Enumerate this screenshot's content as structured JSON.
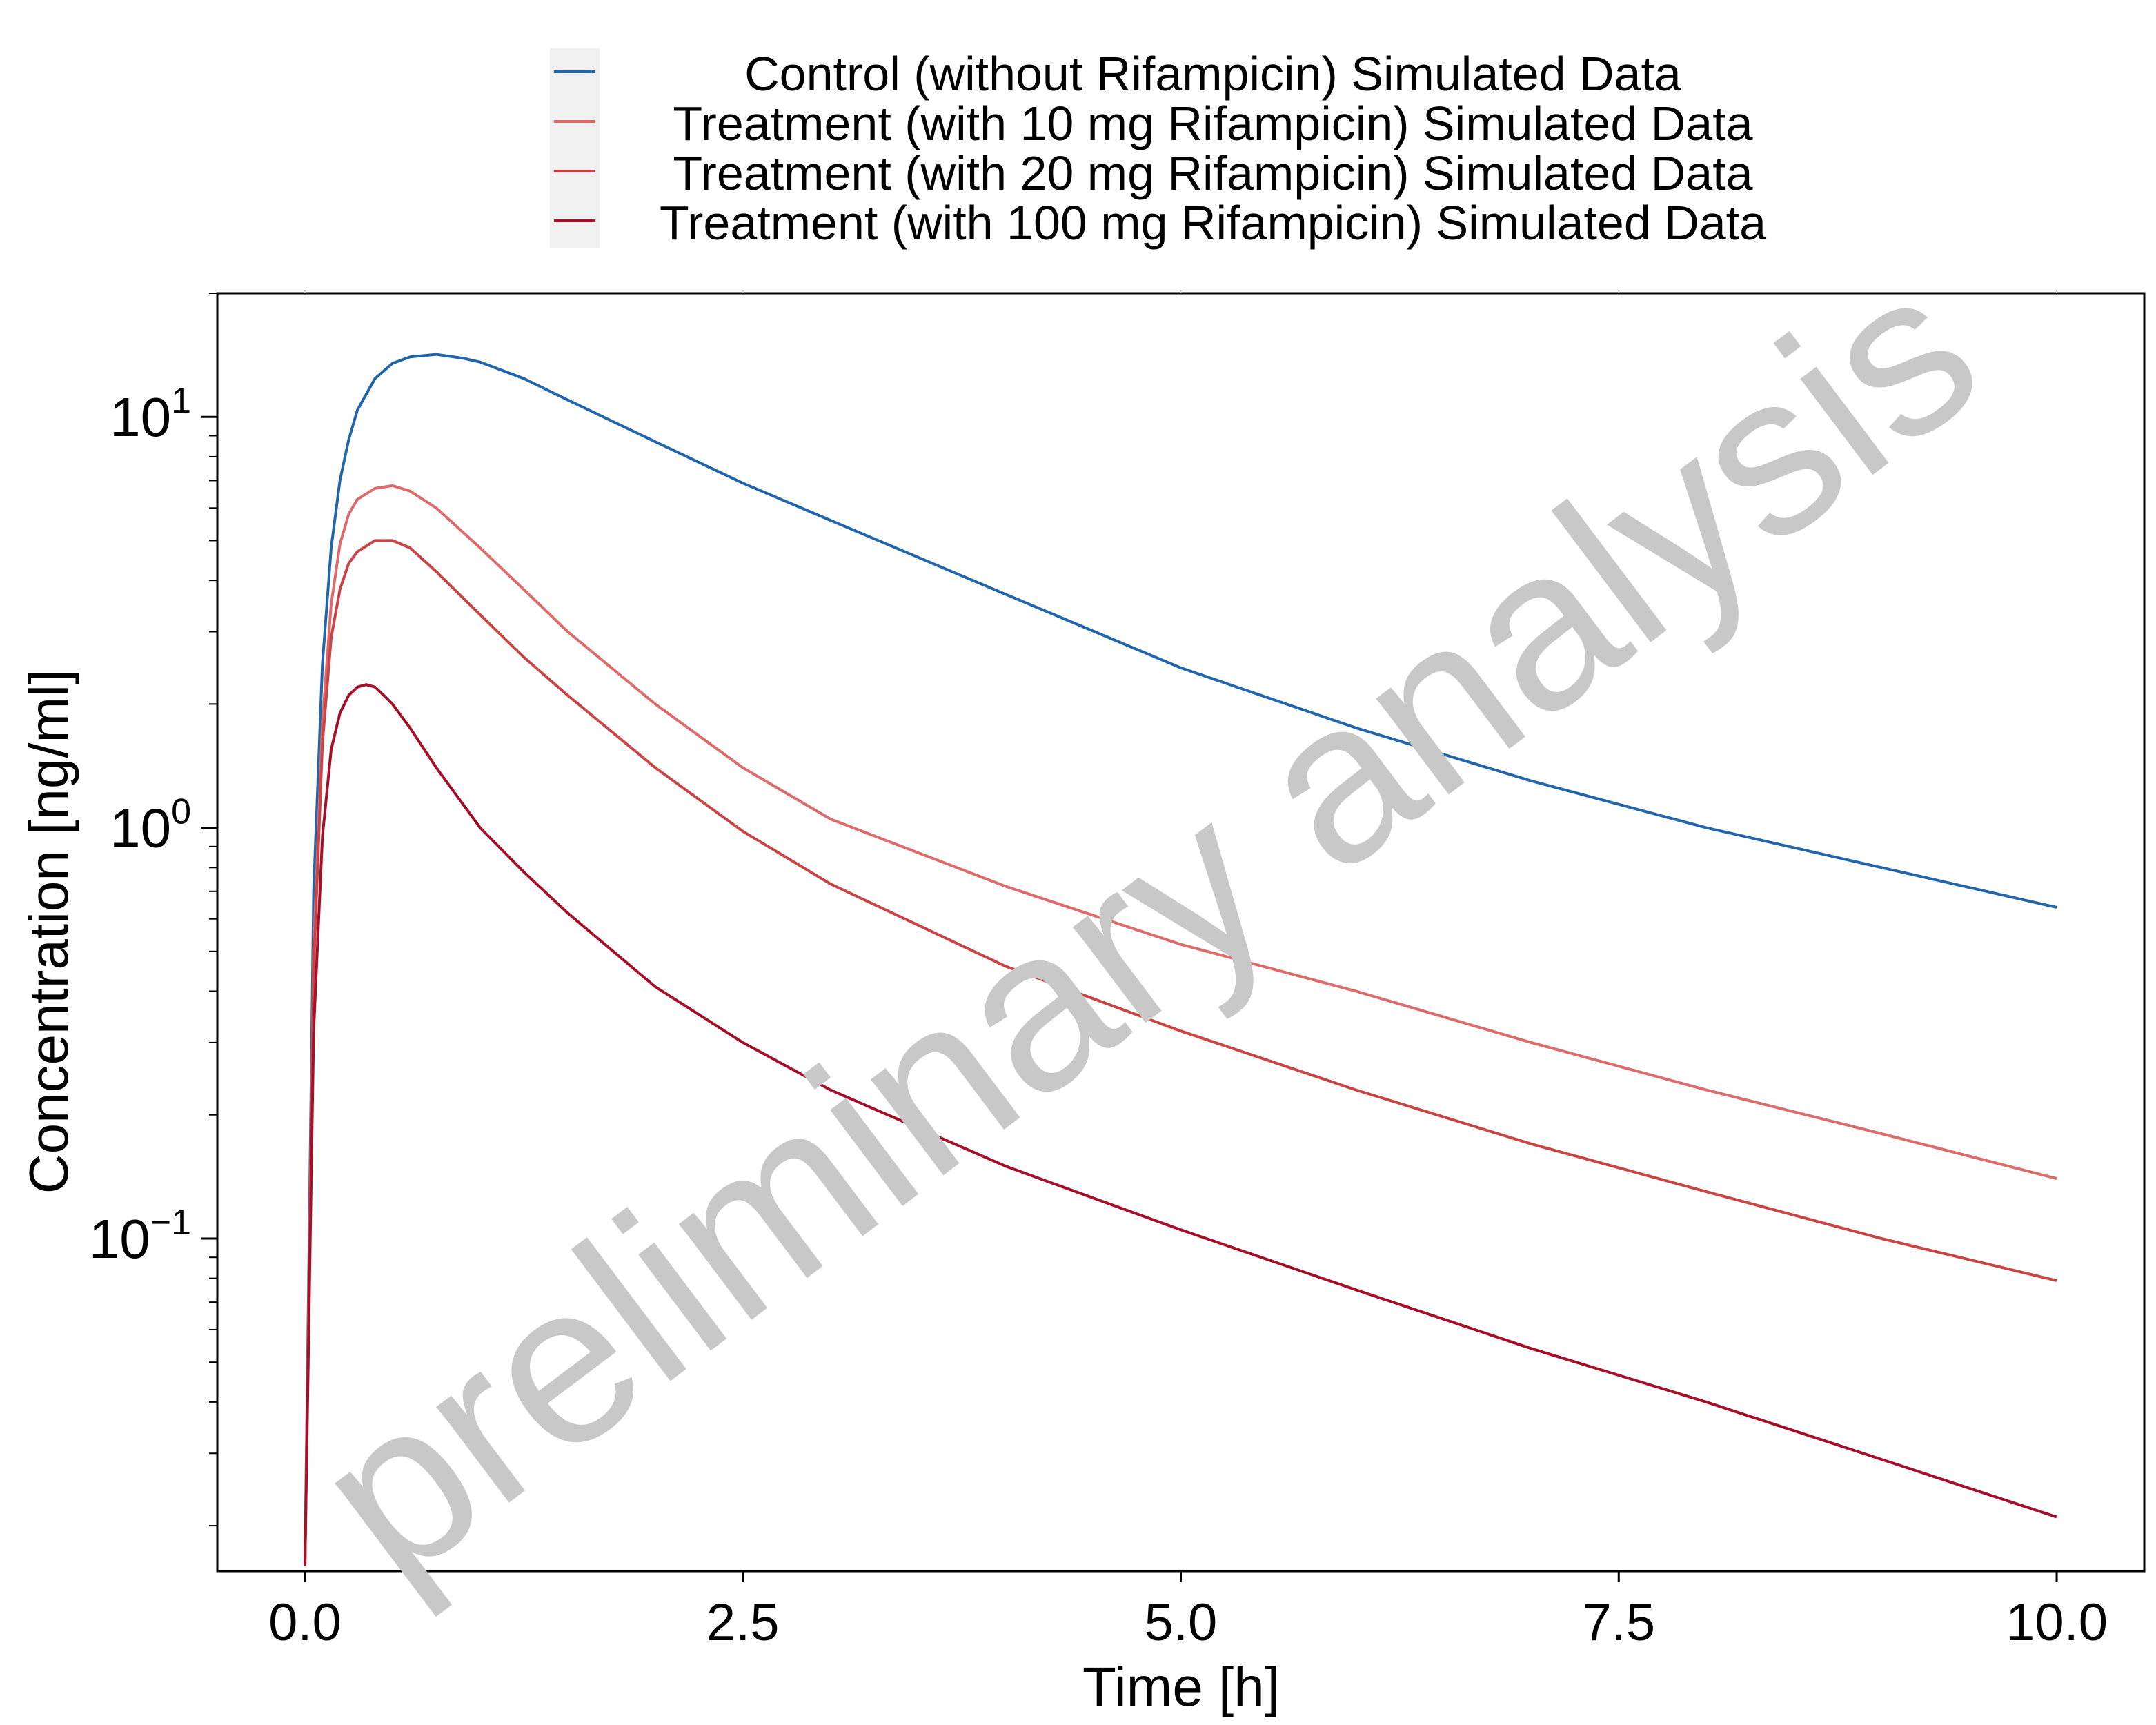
{
  "chart_data": {
    "type": "line",
    "title": "",
    "xlabel": "Time [h]",
    "ylabel": "Concentration [ng/ml]",
    "xlim": [
      -0.5,
      10.5
    ],
    "ylim": [
      0.0155,
      20
    ],
    "yscale": "log",
    "x_ticks": [
      {
        "value": 0,
        "label": "0.0"
      },
      {
        "value": 2.5,
        "label": "2.5"
      },
      {
        "value": 5,
        "label": "5.0"
      },
      {
        "value": 7.5,
        "label": "7.5"
      },
      {
        "value": 10,
        "label": "10.0"
      }
    ],
    "y_ticks": [
      {
        "value": 0.1,
        "base": "10",
        "exp": "−1"
      },
      {
        "value": 1,
        "base": "10",
        "exp": "0"
      },
      {
        "value": 10,
        "base": "10",
        "exp": "1"
      }
    ],
    "grid": false,
    "legend_position": "top-center",
    "series": [
      {
        "name": "Control (without Rifampicin) Simulated Data",
        "color": "#2166ac",
        "x": [
          0,
          0.05,
          0.1,
          0.15,
          0.2,
          0.25,
          0.3,
          0.4,
          0.5,
          0.6,
          0.75,
          0.9,
          1.0,
          1.25,
          1.5,
          2.0,
          2.5,
          3.0,
          4.0,
          5.0,
          6.0,
          7.0,
          8.0,
          9.0,
          10.0
        ],
        "y": [
          0.016,
          0.7,
          2.5,
          4.8,
          7.0,
          8.8,
          10.4,
          12.4,
          13.5,
          14.0,
          14.2,
          13.9,
          13.6,
          12.4,
          11.0,
          8.7,
          6.9,
          5.6,
          3.7,
          2.45,
          1.75,
          1.3,
          1.0,
          0.8,
          0.64
        ]
      },
      {
        "name": "Treatment (with 10 mg Rifampicin) Simulated Data",
        "color": "#de6b6b",
        "x": [
          0,
          0.05,
          0.1,
          0.15,
          0.2,
          0.25,
          0.3,
          0.4,
          0.5,
          0.6,
          0.75,
          1.0,
          1.25,
          1.5,
          2.0,
          2.5,
          3.0,
          4.0,
          5.0,
          6.0,
          7.0,
          8.0,
          9.0,
          10.0
        ],
        "y": [
          0.016,
          0.5,
          1.8,
          3.5,
          4.9,
          5.8,
          6.3,
          6.7,
          6.8,
          6.6,
          6.0,
          4.8,
          3.8,
          3.0,
          2.0,
          1.4,
          1.05,
          0.72,
          0.52,
          0.4,
          0.3,
          0.23,
          0.18,
          0.14
        ]
      },
      {
        "name": "Treatment (with 20 mg Rifampicin) Simulated Data",
        "color": "#c94545",
        "x": [
          0,
          0.05,
          0.1,
          0.15,
          0.2,
          0.25,
          0.3,
          0.4,
          0.5,
          0.6,
          0.75,
          1.0,
          1.25,
          1.5,
          2.0,
          2.5,
          3.0,
          4.0,
          5.0,
          6.0,
          7.0,
          8.0,
          9.0,
          10.0
        ],
        "y": [
          0.016,
          0.45,
          1.6,
          2.9,
          3.8,
          4.4,
          4.7,
          5.0,
          5.0,
          4.8,
          4.2,
          3.3,
          2.6,
          2.1,
          1.4,
          0.98,
          0.73,
          0.46,
          0.32,
          0.23,
          0.17,
          0.13,
          0.1,
          0.079
        ]
      },
      {
        "name": "Treatment (with 100 mg Rifampicin) Simulated Data",
        "color": "#a50f27",
        "x": [
          0,
          0.05,
          0.1,
          0.15,
          0.2,
          0.25,
          0.3,
          0.35,
          0.4,
          0.45,
          0.5,
          0.6,
          0.75,
          1.0,
          1.25,
          1.5,
          2.0,
          2.5,
          3.0,
          4.0,
          5.0,
          6.0,
          7.0,
          8.0,
          9.0,
          10.0
        ],
        "y": [
          0.016,
          0.32,
          0.95,
          1.55,
          1.9,
          2.1,
          2.2,
          2.23,
          2.2,
          2.1,
          2.0,
          1.75,
          1.4,
          1.0,
          0.78,
          0.62,
          0.41,
          0.3,
          0.23,
          0.15,
          0.105,
          0.075,
          0.054,
          0.04,
          0.029,
          0.021
        ]
      }
    ]
  },
  "watermark": "preliminary analysis"
}
